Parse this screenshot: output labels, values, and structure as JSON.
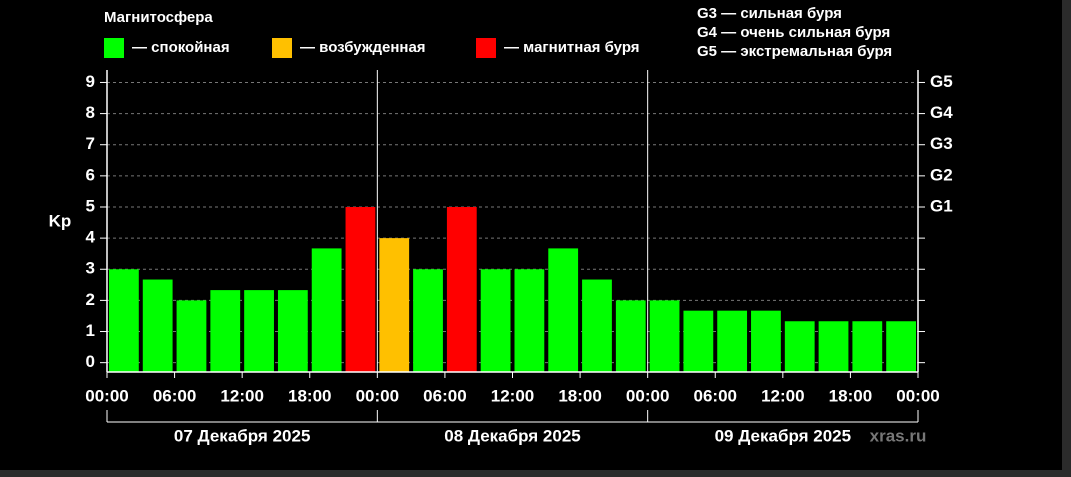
{
  "chart_data": {
    "type": "bar",
    "title": "Магнитосфера",
    "legend": [
      {
        "name": "— спокойная",
        "color": "#00ff00"
      },
      {
        "name": "— возбужденная",
        "color": "#ffc000"
      },
      {
        "name": "— магнитная буря",
        "color": "#ff0000"
      }
    ],
    "scale_notes": [
      "G3 — сильная буря",
      "G4 — очень сильная буря",
      "G5 — экстремальная буря"
    ],
    "y_label": "Kp",
    "x": [
      0,
      3,
      6,
      9,
      12,
      15,
      18,
      21,
      24,
      27,
      30,
      33,
      36,
      39,
      42,
      45,
      48,
      51,
      54,
      57,
      60,
      63,
      66,
      69
    ],
    "bar_width": 3,
    "values": [
      3,
      2.67,
      2,
      2.33,
      2.33,
      2.33,
      3.67,
      5,
      4,
      3,
      5,
      3,
      3,
      3.67,
      2.67,
      2,
      2,
      1.67,
      1.67,
      1.67,
      1.33,
      1.33,
      1.33,
      1.33
    ],
    "colors": [
      "#00ff00",
      "#00ff00",
      "#00ff00",
      "#00ff00",
      "#00ff00",
      "#00ff00",
      "#00ff00",
      "#ff0000",
      "#ffc000",
      "#00ff00",
      "#ff0000",
      "#00ff00",
      "#00ff00",
      "#00ff00",
      "#00ff00",
      "#00ff00",
      "#00ff00",
      "#00ff00",
      "#00ff00",
      "#00ff00",
      "#00ff00",
      "#00ff00",
      "#00ff00",
      "#00ff00"
    ],
    "xlim": [
      0,
      72
    ],
    "xticks": [
      {
        "value": 0,
        "label": "00:00"
      },
      {
        "value": 6,
        "label": "06:00"
      },
      {
        "value": 12,
        "label": "12:00"
      },
      {
        "value": 18,
        "label": "18:00"
      },
      {
        "value": 24,
        "label": "00:00"
      },
      {
        "value": 30,
        "label": "06:00"
      },
      {
        "value": 36,
        "label": "12:00"
      },
      {
        "value": 42,
        "label": "18:00"
      },
      {
        "value": 48,
        "label": "00:00"
      },
      {
        "value": 54,
        "label": "06:00"
      },
      {
        "value": 60,
        "label": "12:00"
      },
      {
        "value": 66,
        "label": "18:00"
      },
      {
        "value": 72,
        "label": "00:00"
      }
    ],
    "days": [
      {
        "label": "07 Декабря 2025",
        "start": 0,
        "end": 24
      },
      {
        "label": "08 Декабря 2025",
        "start": 24,
        "end": 48
      },
      {
        "label": "09 Декабря 2025",
        "start": 48,
        "end": 72
      }
    ],
    "ylim": [
      -0.3,
      9.4
    ],
    "yticks": [
      0,
      1,
      2,
      3,
      4,
      5,
      6,
      7,
      8,
      9
    ],
    "y2ticks": [
      {
        "value": 5,
        "label": "G1"
      },
      {
        "value": 6,
        "label": "G2"
      },
      {
        "value": 7,
        "label": "G3"
      },
      {
        "value": 8,
        "label": "G4"
      },
      {
        "value": 9,
        "label": "G5"
      }
    ],
    "grid": true,
    "watermark": "xras.ru"
  }
}
